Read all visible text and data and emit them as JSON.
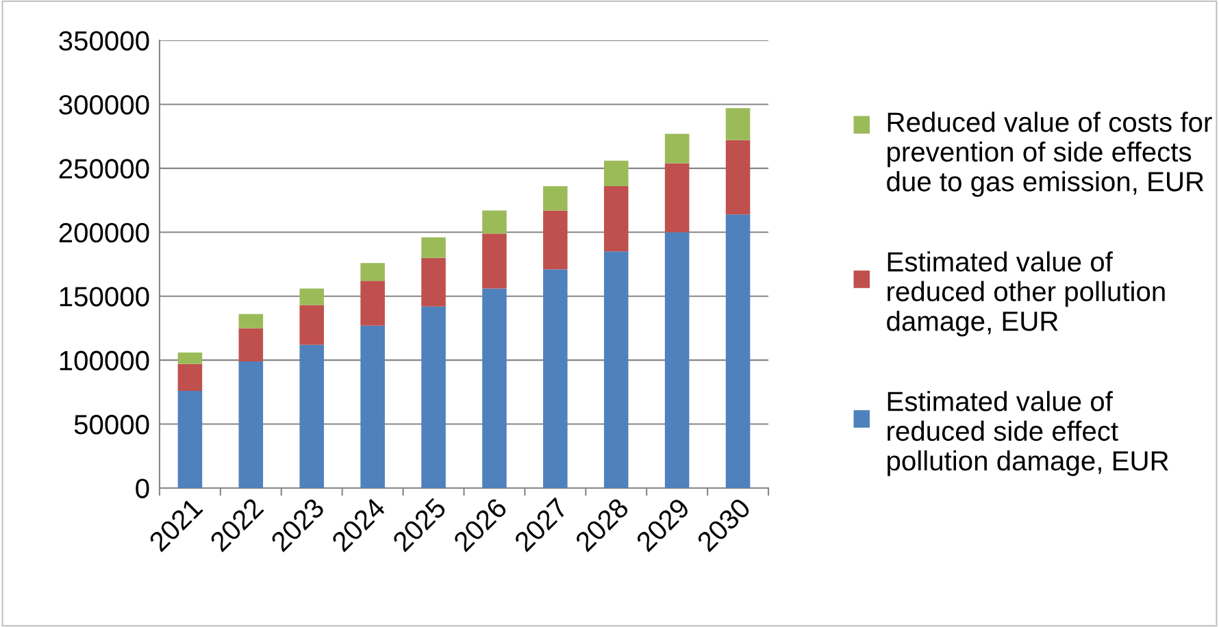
{
  "chart_data": {
    "type": "bar",
    "stacked": true,
    "categories": [
      "2021",
      "2022",
      "2023",
      "2024",
      "2025",
      "2026",
      "2027",
      "2028",
      "2029",
      "2030"
    ],
    "series": [
      {
        "name": "Estimated value of reduced side effect pollution damage, EUR",
        "color": "#4f81bd",
        "values": [
          76000,
          99000,
          112000,
          127000,
          142000,
          156000,
          171000,
          185000,
          200000,
          214000
        ]
      },
      {
        "name": "Estimated value of reduced other pollution damage, EUR",
        "color": "#c0504d",
        "values": [
          21000,
          26000,
          31000,
          35000,
          38000,
          43000,
          46000,
          51000,
          54000,
          58000
        ]
      },
      {
        "name": "Reduced value of costs for prevention of side effects due to gas emission, EUR",
        "color": "#9bbb59",
        "values": [
          9000,
          11000,
          13000,
          14000,
          16000,
          18000,
          19000,
          20000,
          23000,
          25000
        ]
      }
    ],
    "ylim": [
      0,
      350000
    ],
    "yticks": [
      0,
      50000,
      100000,
      150000,
      200000,
      250000,
      300000,
      350000
    ],
    "grid": "y",
    "legend": "right"
  }
}
